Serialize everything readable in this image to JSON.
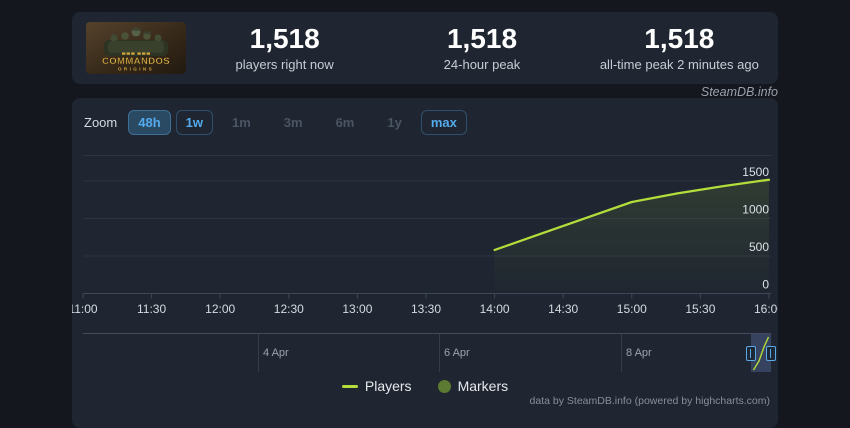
{
  "app": {
    "watermark": "SteamDB.info",
    "credits": "data by SteamDB.info (powered by highcharts.com)"
  },
  "game": {
    "title": "COMMANDOS",
    "subtitle": "ORIGINS"
  },
  "stats": [
    {
      "value": "1,518",
      "label": "players right now"
    },
    {
      "value": "1,518",
      "label": "24-hour peak"
    },
    {
      "value": "1,518",
      "label": "all-time peak 2 minutes ago"
    }
  ],
  "toolbar": {
    "zoom_label": "Zoom",
    "buttons": [
      {
        "label": "48h",
        "state": "active"
      },
      {
        "label": "1w",
        "state": "enabled"
      },
      {
        "label": "1m",
        "state": "disabled"
      },
      {
        "label": "3m",
        "state": "disabled"
      },
      {
        "label": "6m",
        "state": "disabled"
      },
      {
        "label": "1y",
        "state": "disabled"
      },
      {
        "label": "max",
        "state": "enabled"
      }
    ]
  },
  "chart_data": {
    "type": "line",
    "title": "",
    "xlabel": "",
    "ylabel": "",
    "x_ticks": [
      "11:00",
      "11:30",
      "12:00",
      "12:30",
      "13:00",
      "13:30",
      "14:00",
      "14:30",
      "15:00",
      "15:30",
      "16:00"
    ],
    "y_ticks": [
      0,
      500,
      1000,
      1500
    ],
    "ylim": [
      0,
      1850
    ],
    "grid": true,
    "legend_position": "bottom-center",
    "series": [
      {
        "name": "Players",
        "color": "#b3dd3b",
        "points": [
          {
            "t": "14:00",
            "v": 580
          },
          {
            "t": "14:20",
            "v": 795
          },
          {
            "t": "14:40",
            "v": 1008
          },
          {
            "t": "15:00",
            "v": 1220
          },
          {
            "t": "15:20",
            "v": 1335
          },
          {
            "t": "15:40",
            "v": 1432
          },
          {
            "t": "16:00",
            "v": 1518
          }
        ]
      },
      {
        "name": "Markers",
        "color": "#5c7a31",
        "points": []
      }
    ],
    "navigator": {
      "date_labels": [
        "4 Apr",
        "6 Apr",
        "8 Apr"
      ],
      "selection": "right edge (current 48h window)"
    }
  },
  "legend": [
    {
      "label": "Players",
      "swatch": "line",
      "color": "#b3dd3b"
    },
    {
      "label": "Markers",
      "swatch": "circle",
      "color": "#5c7a31"
    }
  ],
  "colors": {
    "page_bg": "#14171e",
    "card_bg": "#1f2631",
    "accent_blue": "#54aaec",
    "line_green": "#b3dd3b",
    "marker_olive": "#5c7a31",
    "grid": "#2b3442",
    "axis": "#3d4959"
  }
}
